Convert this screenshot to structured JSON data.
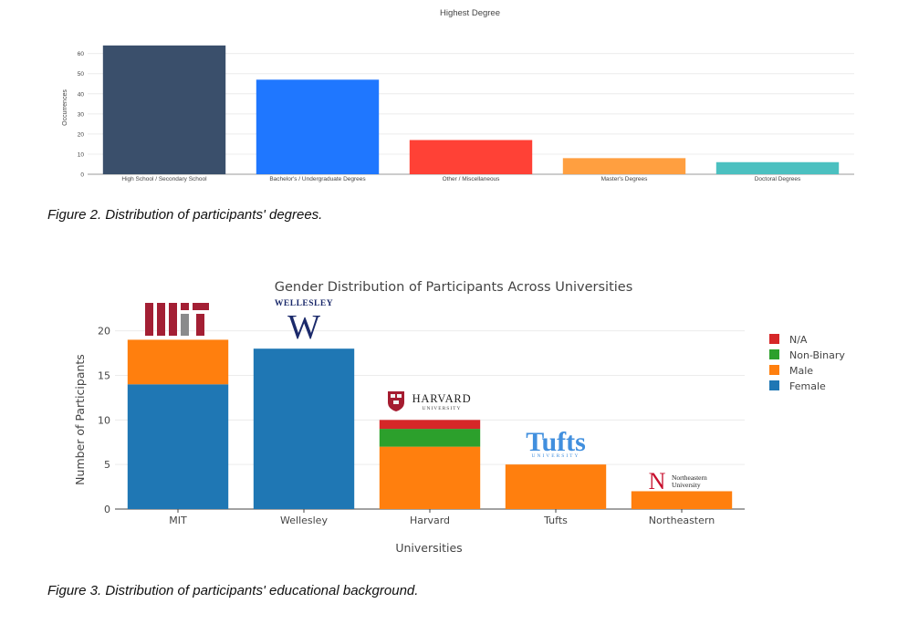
{
  "chart_data": [
    {
      "type": "bar",
      "title": "Highest Degree",
      "ylabel": "Occurrences",
      "xlabel": "",
      "ylim": [
        0,
        68
      ],
      "yticks": [
        0,
        10,
        20,
        30,
        40,
        50,
        60
      ],
      "grid": true,
      "categories": [
        "High School / Secondary School",
        "Bachelor's / Undergraduate Degrees",
        "Other / Miscellaneous",
        "Master's Degrees",
        "Doctoral Degrees"
      ],
      "values": [
        64,
        47,
        17,
        8,
        6
      ],
      "colors": [
        "#3a4f6b",
        "#1f77ff",
        "#ff4136",
        "#ff9f40",
        "#4bc0c0"
      ]
    },
    {
      "type": "bar",
      "stacked": true,
      "title": "Gender Distribution of Participants Across Universities",
      "xlabel": "Universities",
      "ylabel": "Number of Participants",
      "ylim": [
        0,
        21.5
      ],
      "yticks": [
        0,
        5,
        10,
        15,
        20
      ],
      "grid": true,
      "legend_position": "top-right",
      "categories": [
        "MIT",
        "Wellesley",
        "Harvard",
        "Tufts",
        "Northeastern"
      ],
      "series": [
        {
          "name": "Female",
          "color": "#1f77b4",
          "values": [
            14,
            18,
            0,
            0,
            0
          ]
        },
        {
          "name": "Male",
          "color": "#ff7f0e",
          "values": [
            5,
            0,
            7,
            5,
            2
          ]
        },
        {
          "name": "Non-Binary",
          "color": "#2ca02c",
          "values": [
            0,
            0,
            2,
            0,
            0
          ]
        },
        {
          "name": "N/A",
          "color": "#d62728",
          "values": [
            0,
            0,
            1,
            0,
            0
          ]
        }
      ],
      "legend_order": [
        "N/A",
        "Non-Binary",
        "Male",
        "Female"
      ],
      "logos": {
        "mit": "MIT",
        "wellesley_word": "WELLESLEY",
        "wellesley_mark": "W",
        "harvard_name": "HARVARD",
        "harvard_sub": "UNIVERSITY",
        "tufts_name": "Tufts",
        "tufts_sub": "UNIVERSITY",
        "ne_mark": "N",
        "ne_line1": "Northeastern",
        "ne_line2": "University"
      }
    }
  ],
  "captions": {
    "figure2": "Figure 2. Distribution of participants' degrees.",
    "figure3": "Figure 3. Distribution of participants' educational background."
  }
}
